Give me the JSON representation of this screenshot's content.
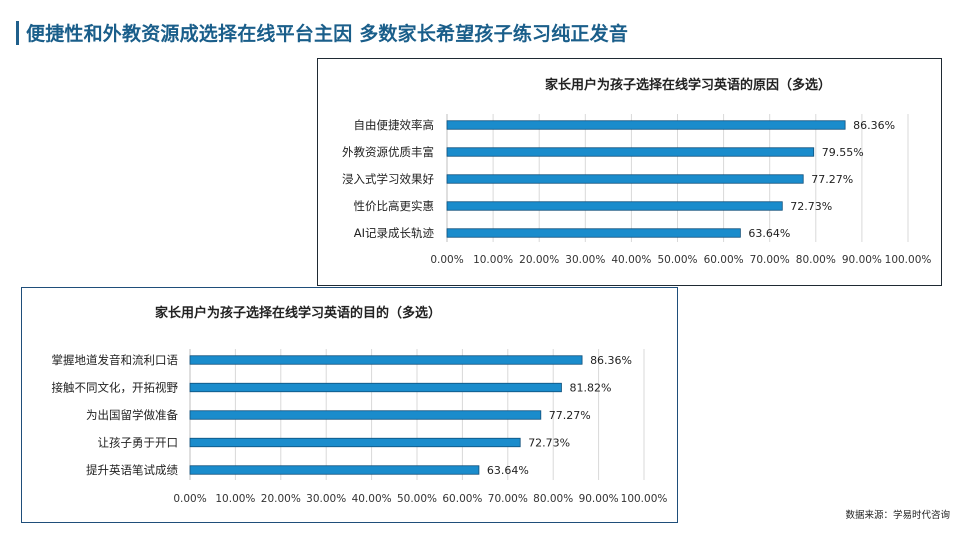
{
  "page": {
    "title": "便捷性和外教资源成选择在线平台主因  多数家长希望孩子练习纯正发音",
    "source": "数据来源：学易时代咨询"
  },
  "colors": {
    "accent": "#1a5e8a",
    "bar": "#1a8ccc",
    "bar_edge": "#0f4f7a",
    "grid": "#d9d9d9"
  },
  "chart_data": [
    {
      "type": "bar",
      "orientation": "horizontal",
      "title": "家长用户为孩子选择在线学习英语的原因（多选）",
      "categories": [
        "自由便捷效率高",
        "外教资源优质丰富",
        "浸入式学习效果好",
        "性价比高更实惠",
        "AI记录成长轨迹"
      ],
      "values": [
        86.36,
        79.55,
        77.27,
        72.73,
        63.64
      ],
      "value_labels": [
        "86.36%",
        "79.55%",
        "77.27%",
        "72.73%",
        "63.64%"
      ],
      "xlim": [
        0,
        100
      ],
      "xticks": [
        "0.00%",
        "10.00%",
        "20.00%",
        "30.00%",
        "40.00%",
        "50.00%",
        "60.00%",
        "70.00%",
        "80.00%",
        "90.00%",
        "100.00%"
      ],
      "grid": "vertical"
    },
    {
      "type": "bar",
      "orientation": "horizontal",
      "title": "家长用户为孩子选择在线学习英语的目的（多选）",
      "categories": [
        "掌握地道发音和流利口语",
        "接触不同文化，开拓视野",
        "为出国留学做准备",
        "让孩子勇于开口",
        "提升英语笔试成绩"
      ],
      "values": [
        86.36,
        81.82,
        77.27,
        72.73,
        63.64
      ],
      "value_labels": [
        "86.36%",
        "81.82%",
        "77.27%",
        "72.73%",
        "63.64%"
      ],
      "xlim": [
        0,
        100
      ],
      "xticks": [
        "0.00%",
        "10.00%",
        "20.00%",
        "30.00%",
        "40.00%",
        "50.00%",
        "60.00%",
        "70.00%",
        "80.00%",
        "90.00%",
        "100.00%"
      ],
      "grid": "vertical"
    }
  ]
}
